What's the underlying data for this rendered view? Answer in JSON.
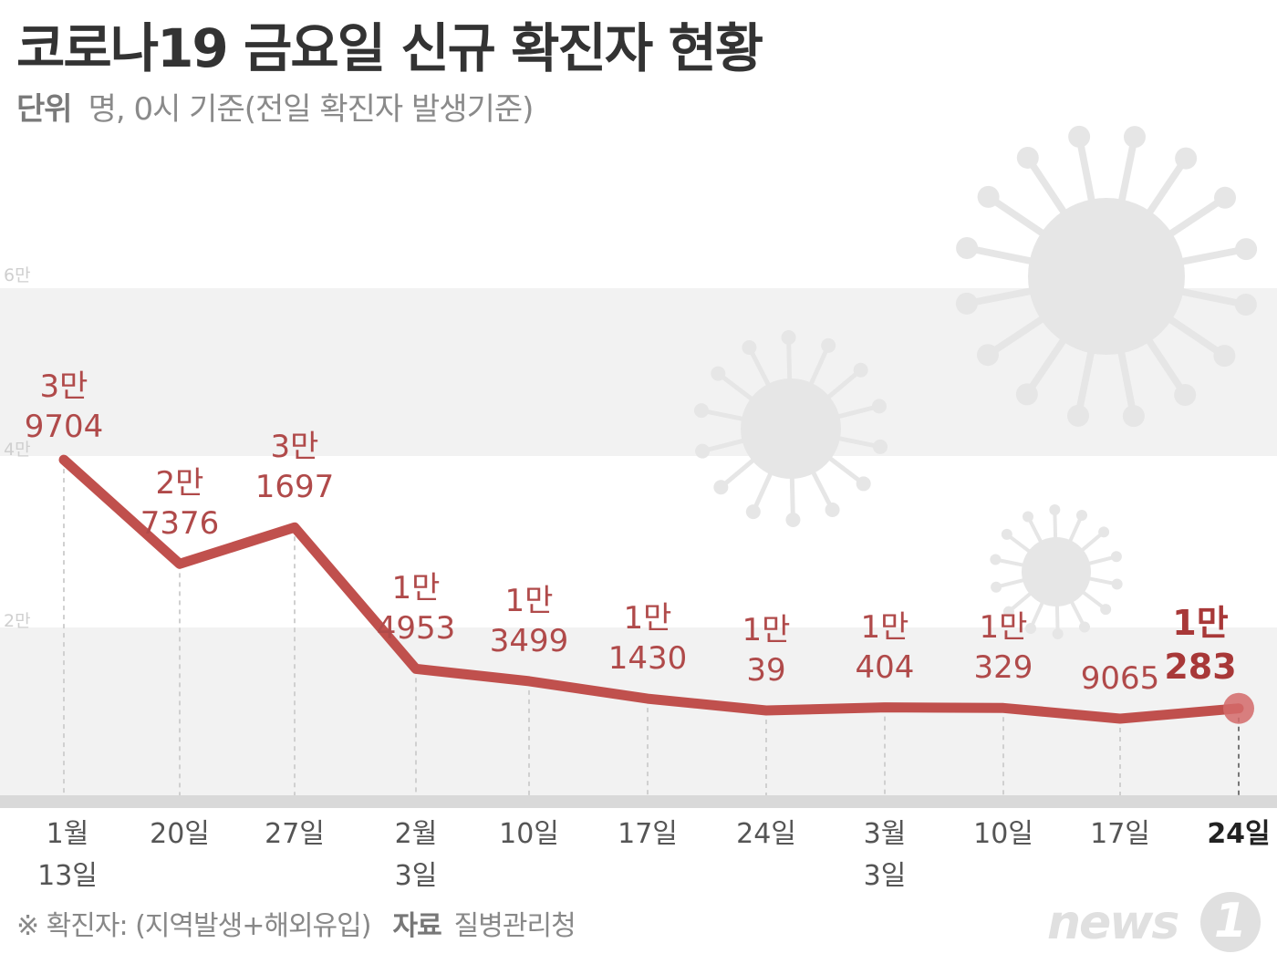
{
  "title": "코로나19 금요일 신규 확진자 현황",
  "subtitle": {
    "unit_label": "단위",
    "unit_text": "명, 0시 기준(전일 확진자 발생기준)"
  },
  "footer": {
    "note": "※ 확진자: (지역발생+해외유입)",
    "source_label": "자료",
    "source": "질병관리청"
  },
  "logo": {
    "text": "news",
    "mark": "1"
  },
  "colors": {
    "line": "#c0504d",
    "label": "#b04a4a",
    "band": "#f2f2f2",
    "virus": "#e6e6e6"
  },
  "chart_data": {
    "type": "line",
    "title": "코로나19 금요일 신규 확진자 현황",
    "ylabel": "명",
    "ylim": [
      0,
      60000
    ],
    "y_ticks": [
      {
        "value": 20000,
        "label": "2만"
      },
      {
        "value": 40000,
        "label": "4만"
      },
      {
        "value": 60000,
        "label": "6만"
      }
    ],
    "categories": [
      "1월 13일",
      "20일",
      "27일",
      "2월 3일",
      "10일",
      "17일",
      "24일",
      "3월 3일",
      "10일",
      "17일",
      "24일"
    ],
    "x_labels": [
      [
        "1월",
        "13일"
      ],
      [
        "20일"
      ],
      [
        "27일"
      ],
      [
        "2월",
        "3일"
      ],
      [
        "10일"
      ],
      [
        "17일"
      ],
      [
        "24일"
      ],
      [
        "3월",
        "3일"
      ],
      [
        "10일"
      ],
      [
        "17일"
      ],
      [
        "24일"
      ]
    ],
    "values": [
      39704,
      27376,
      31697,
      14953,
      13499,
      11430,
      10039,
      10404,
      10329,
      9065,
      10283
    ],
    "data_labels": [
      [
        "3만",
        "9704"
      ],
      [
        "2만",
        "7376"
      ],
      [
        "3만",
        "1697"
      ],
      [
        "1만",
        "4953"
      ],
      [
        "1만",
        "3499"
      ],
      [
        "1만",
        "1430"
      ],
      [
        "1만",
        "39"
      ],
      [
        "1만",
        "404"
      ],
      [
        "1만",
        "329"
      ],
      [
        "9065"
      ],
      [
        "1만",
        "283"
      ]
    ],
    "highlight_last": true,
    "grid": false
  }
}
